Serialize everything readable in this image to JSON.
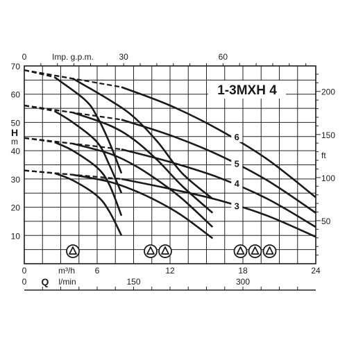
{
  "chart_data": {
    "type": "line",
    "title": "1-3MXH 4",
    "x_primary": {
      "unit": "m³/h",
      "label": "Q",
      "range": [
        0,
        24
      ],
      "ticks": [
        0,
        6,
        12,
        18,
        24
      ],
      "tick_labels": [
        "0",
        "6",
        "12",
        "18",
        "24"
      ]
    },
    "x_secondary": {
      "unit": "l/min",
      "range": [
        0,
        400
      ],
      "ticks": [
        0,
        150,
        300
      ],
      "tick_labels": [
        "0",
        "150",
        "300"
      ]
    },
    "x_top": {
      "unit": "Imp. g.p.m.",
      "range": [
        0,
        88
      ],
      "ticks": [
        0,
        30,
        60
      ],
      "tick_labels": [
        "0",
        "30",
        "60"
      ]
    },
    "y_left": {
      "label": "H",
      "unit": "m",
      "range": [
        0,
        70
      ],
      "ticks": [
        10,
        20,
        30,
        40,
        50,
        60,
        70
      ],
      "tick_labels": [
        "10",
        "20",
        "30",
        "40",
        "50",
        "60",
        "70"
      ]
    },
    "y_right": {
      "unit": "ft",
      "range": [
        0,
        229.6
      ],
      "ticks": [
        50,
        100,
        150,
        200
      ],
      "tick_labels": [
        "50",
        "100",
        "150",
        "200"
      ]
    },
    "grid": true,
    "series": [
      {
        "name": "6",
        "label_at": [
          17.5,
          44.5
        ],
        "pumps": [
          {
            "shutoff": 68.5,
            "dash_to": [
              2.5,
              66
            ],
            "points": [
              [
                2.5,
                66
              ],
              [
                5,
                58
              ],
              [
                6,
                52
              ],
              [
                7,
                43
              ],
              [
                8,
                32
              ]
            ]
          },
          {
            "shutoff": 68.5,
            "dash_to": [
              4,
              65.5
            ],
            "points": [
              [
                4,
                65.5
              ],
              [
                7,
                58
              ],
              [
                9,
                52
              ],
              [
                11,
                43
              ],
              [
                13,
                32
              ],
              [
                15.5,
                23
              ]
            ]
          },
          {
            "shutoff": 68.5,
            "dash_to": [
              8,
              62.5
            ],
            "points": [
              [
                8,
                62.5
              ],
              [
                12,
                56
              ],
              [
                16,
                47.5
              ],
              [
                20,
                37
              ],
              [
                24,
                23.5
              ]
            ]
          }
        ]
      },
      {
        "name": "5",
        "label_at": [
          17.5,
          35
        ],
        "pumps": [
          {
            "shutoff": 56,
            "dash_to": [
              2.5,
              54
            ],
            "points": [
              [
                2.5,
                54
              ],
              [
                4,
                50
              ],
              [
                6,
                43
              ],
              [
                7,
                35
              ],
              [
                8,
                25
              ]
            ]
          },
          {
            "shutoff": 56,
            "dash_to": [
              4,
              53.5
            ],
            "points": [
              [
                4,
                53.5
              ],
              [
                7,
                49
              ],
              [
                9,
                44
              ],
              [
                11,
                36.5
              ],
              [
                13,
                27.5
              ],
              [
                15.5,
                18
              ]
            ]
          },
          {
            "shutoff": 56,
            "dash_to": [
              8,
              51
            ],
            "points": [
              [
                8,
                51
              ],
              [
                12,
                45.5
              ],
              [
                16,
                38.5
              ],
              [
                20,
                29.5
              ],
              [
                24,
                18
              ]
            ]
          }
        ]
      },
      {
        "name": "4",
        "label_at": [
          17.5,
          28
        ],
        "pumps": [
          {
            "shutoff": 44.5,
            "dash_to": [
              2.5,
              43
            ],
            "points": [
              [
                2.5,
                43
              ],
              [
                4,
                40
              ],
              [
                6,
                34
              ],
              [
                7,
                28
              ],
              [
                8,
                17
              ]
            ]
          },
          {
            "shutoff": 44.5,
            "dash_to": [
              4,
              42.5
            ],
            "points": [
              [
                4,
                42.5
              ],
              [
                7,
                39
              ],
              [
                9,
                35
              ],
              [
                11,
                29.5
              ],
              [
                13,
                23
              ],
              [
                15.5,
                13
              ]
            ]
          },
          {
            "shutoff": 44.5,
            "dash_to": [
              8,
              40.5
            ],
            "points": [
              [
                8,
                40.5
              ],
              [
                12,
                36
              ],
              [
                16,
                30.5
              ],
              [
                20,
                23
              ],
              [
                24,
                13
              ]
            ]
          }
        ]
      },
      {
        "name": "3",
        "label_at": [
          17.5,
          20
        ],
        "pumps": [
          {
            "shutoff": 33,
            "dash_to": [
              2.5,
              32
            ],
            "points": [
              [
                2.5,
                32
              ],
              [
                4,
                29.5
              ],
              [
                6,
                24
              ],
              [
                7,
                18.5
              ],
              [
                8,
                10
              ]
            ]
          },
          {
            "shutoff": 33,
            "dash_to": [
              4,
              31.5
            ],
            "points": [
              [
                4,
                31.5
              ],
              [
                7,
                29
              ],
              [
                9,
                26
              ],
              [
                11,
                22
              ],
              [
                13,
                17
              ],
              [
                15.5,
                9
              ]
            ]
          },
          {
            "shutoff": 33,
            "dash_to": [
              8,
              30
            ],
            "points": [
              [
                8,
                30
              ],
              [
                12,
                26.5
              ],
              [
                16,
                22.5
              ],
              [
                20,
                17
              ],
              [
                24,
                9.5
              ]
            ]
          }
        ]
      }
    ],
    "pump_symbols": [
      {
        "count": 1,
        "x": 4
      },
      {
        "count": 2,
        "x": 11
      },
      {
        "count": 3,
        "x": 19
      }
    ]
  }
}
